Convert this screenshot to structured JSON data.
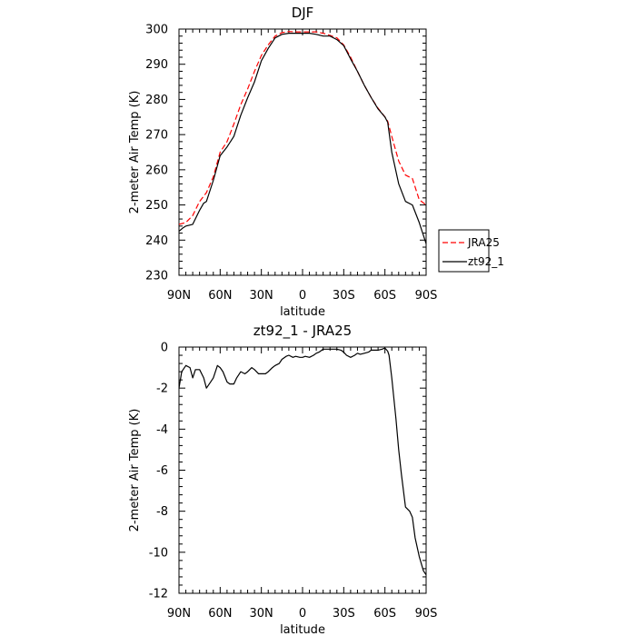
{
  "chart_data": [
    {
      "type": "line",
      "title": "DJF",
      "xlabel": "latitude",
      "ylabel": "2-meter Air Temp (K)",
      "xlim": [
        90,
        -90
      ],
      "ylim": [
        230,
        300
      ],
      "xticks": [
        90,
        60,
        30,
        0,
        -30,
        -60,
        -90
      ],
      "xtick_labels": [
        "90N",
        "60N",
        "30N",
        "0",
        "30S",
        "60S",
        "90S"
      ],
      "yticks": [
        230,
        240,
        250,
        260,
        270,
        280,
        290,
        300
      ],
      "ytick_labels": [
        "230",
        "240",
        "250",
        "260",
        "270",
        "280",
        "290",
        "300"
      ],
      "legend_position": "right",
      "series": [
        {
          "name": "JRA25",
          "color": "#ff0000",
          "dash": "dashed",
          "x": [
            90,
            85,
            80,
            75,
            70,
            65,
            60,
            55,
            50,
            45,
            40,
            35,
            30,
            25,
            20,
            15,
            10,
            5,
            0,
            -5,
            -10,
            -15,
            -20,
            -25,
            -30,
            -35,
            -40,
            -45,
            -50,
            -55,
            -60,
            -62,
            -65,
            -70,
            -75,
            -80,
            -85,
            -90
          ],
          "values": [
            244.5,
            245,
            247,
            251,
            253.5,
            258,
            265,
            268,
            273,
            278.5,
            283,
            288,
            292.5,
            295.5,
            298,
            299,
            299.3,
            299.2,
            299.2,
            299.2,
            299.2,
            298.8,
            298.2,
            297.5,
            295.5,
            292,
            288,
            284,
            280.5,
            277.5,
            275,
            273.8,
            269.5,
            262.5,
            258.5,
            257.5,
            251.5,
            250
          ]
        },
        {
          "name": "zt92_1",
          "color": "#000000",
          "dash": "solid",
          "x": [
            90,
            87,
            85,
            80,
            75,
            72,
            70,
            65,
            60,
            55,
            50,
            45,
            40,
            35,
            30,
            25,
            20,
            15,
            10,
            5,
            0,
            -5,
            -10,
            -15,
            -20,
            -25,
            -30,
            -35,
            -40,
            -45,
            -50,
            -55,
            -60,
            -62,
            -65,
            -70,
            -75,
            -80,
            -85,
            -90
          ],
          "values": [
            242.5,
            243.5,
            244,
            244.5,
            248.5,
            250.5,
            251,
            257,
            264,
            266.5,
            269.5,
            275.5,
            280.5,
            285,
            291,
            294.5,
            297.5,
            298.5,
            298.8,
            298.8,
            298.8,
            298.8,
            298.5,
            298,
            298,
            297,
            295.3,
            291.5,
            288,
            284,
            280.5,
            277.3,
            275,
            273.5,
            265,
            256,
            251,
            250,
            245,
            239
          ]
        }
      ]
    },
    {
      "type": "line",
      "title": "zt92_1 - JRA25",
      "xlabel": "latitude",
      "ylabel": "2-meter Air Temp (K)",
      "xlim": [
        90,
        -90
      ],
      "ylim": [
        -12,
        0
      ],
      "xticks": [
        90,
        60,
        30,
        0,
        -30,
        -60,
        -90
      ],
      "xtick_labels": [
        "90N",
        "60N",
        "30N",
        "0",
        "30S",
        "60S",
        "90S"
      ],
      "yticks": [
        -12,
        -10,
        -8,
        -6,
        -4,
        -2,
        0
      ],
      "ytick_labels": [
        "-12",
        "-10",
        "-8",
        "-6",
        "-4",
        "-2",
        "0"
      ],
      "series": [
        {
          "color": "#000000",
          "dash": "solid",
          "x": [
            90,
            88,
            85,
            82,
            80,
            78,
            75,
            72,
            70,
            67,
            65,
            62,
            60,
            58,
            55,
            53,
            50,
            48,
            45,
            42,
            40,
            37,
            35,
            32,
            30,
            27,
            25,
            22,
            20,
            17,
            15,
            12,
            10,
            7,
            5,
            2,
            0,
            -2,
            -5,
            -8,
            -10,
            -12,
            -15,
            -18,
            -20,
            -22,
            -25,
            -28,
            -30,
            -32,
            -35,
            -38,
            -40,
            -42,
            -45,
            -48,
            -50,
            -52,
            -55,
            -58,
            -60,
            -62,
            -63,
            -65,
            -68,
            -70,
            -72,
            -75,
            -78,
            -80,
            -82,
            -85,
            -88,
            -90
          ],
          "values": [
            -2.0,
            -1.2,
            -0.9,
            -1.0,
            -1.5,
            -1.1,
            -1.1,
            -1.5,
            -2.0,
            -1.7,
            -1.5,
            -0.9,
            -1.0,
            -1.2,
            -1.7,
            -1.8,
            -1.8,
            -1.5,
            -1.2,
            -1.3,
            -1.2,
            -1.0,
            -1.1,
            -1.3,
            -1.3,
            -1.3,
            -1.2,
            -1.0,
            -0.9,
            -0.8,
            -0.6,
            -0.45,
            -0.4,
            -0.5,
            -0.45,
            -0.5,
            -0.5,
            -0.45,
            -0.5,
            -0.4,
            -0.3,
            -0.25,
            -0.1,
            -0.1,
            -0.1,
            -0.1,
            -0.1,
            -0.15,
            -0.25,
            -0.4,
            -0.5,
            -0.4,
            -0.3,
            -0.35,
            -0.3,
            -0.25,
            -0.15,
            -0.15,
            -0.15,
            -0.1,
            -0.05,
            -0.2,
            -0.4,
            -1.5,
            -3.5,
            -5.0,
            -6.2,
            -7.8,
            -8.0,
            -8.3,
            -9.3,
            -10.2,
            -10.9,
            -11.1
          ]
        }
      ]
    }
  ]
}
